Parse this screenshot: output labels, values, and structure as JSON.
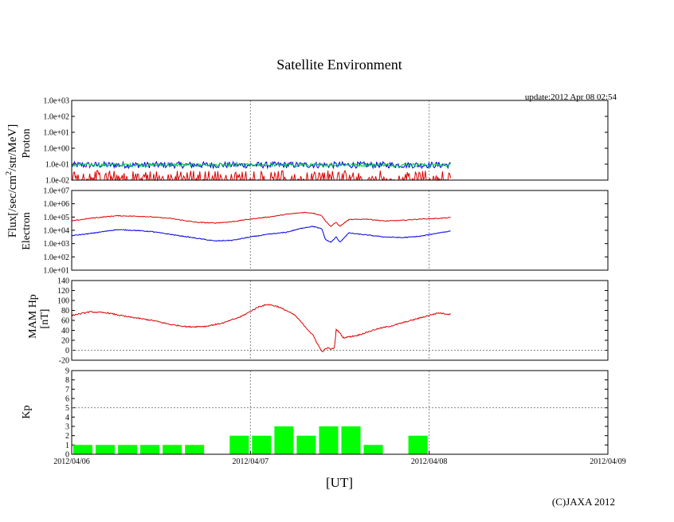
{
  "chart_data": {
    "type": "line",
    "title": "Satellite Environment",
    "update_text": "update:2012 Apr 08 02:54",
    "xlabel": "[UT]",
    "copyright": "(C)JAXA 2012",
    "x_ticks": [
      "2012/04/06",
      "2012/04/07",
      "2012/04/08",
      "2012/04/09"
    ],
    "x_range_days": [
      0,
      3
    ],
    "data_end_day": 2.12,
    "flux_axis_label": "Flux[/sec/cm",
    "flux_axis_sup": "2",
    "flux_axis_rest": "/str/MeV]",
    "panels": {
      "proton": {
        "label": "Proton",
        "scale": "log",
        "ylim": [
          -2,
          3
        ],
        "y_ticks": [
          "1.0e+03",
          "1.0e+02",
          "1.0e+01",
          "1.0e+00",
          "1.0e-01",
          "1.0e-02"
        ],
        "series": [
          {
            "name": "proton-channel-1",
            "color": "#0000dd",
            "log_level_range": [
              -1.25,
              -0.85
            ]
          },
          {
            "name": "proton-channel-2",
            "color": "#00cc44",
            "log_level_range": [
              -1.15,
              -0.95
            ]
          },
          {
            "name": "proton-channel-3",
            "color": "#dd0000",
            "log_level_range": [
              -2.0,
              -1.4
            ]
          }
        ]
      },
      "electron": {
        "label": "Electron",
        "scale": "log",
        "ylim": [
          1,
          7
        ],
        "y_ticks": [
          "1.0e+07",
          "1.0e+06",
          "1.0e+05",
          "1.0e+04",
          "1.0e+03",
          "1.0e+02",
          "1.0e+01"
        ],
        "series": [
          {
            "name": "electron-high",
            "color": "#dd0000",
            "points": [
              [
                0,
                4.7
              ],
              [
                0.1,
                4.9
              ],
              [
                0.25,
                5.1
              ],
              [
                0.4,
                5.05
              ],
              [
                0.55,
                4.9
              ],
              [
                0.7,
                4.6
              ],
              [
                0.8,
                4.55
              ],
              [
                0.9,
                4.65
              ],
              [
                1.0,
                4.85
              ],
              [
                1.1,
                5.0
              ],
              [
                1.2,
                5.2
              ],
              [
                1.3,
                5.35
              ],
              [
                1.35,
                5.3
              ],
              [
                1.4,
                5.1
              ],
              [
                1.42,
                4.7
              ],
              [
                1.45,
                4.3
              ],
              [
                1.48,
                4.6
              ],
              [
                1.5,
                4.3
              ],
              [
                1.55,
                4.8
              ],
              [
                1.65,
                4.85
              ],
              [
                1.75,
                4.7
              ],
              [
                1.85,
                4.75
              ],
              [
                1.95,
                4.85
              ],
              [
                2.05,
                4.9
              ],
              [
                2.12,
                4.95
              ]
            ]
          },
          {
            "name": "electron-low",
            "color": "#0000dd",
            "points": [
              [
                0,
                3.6
              ],
              [
                0.1,
                3.75
              ],
              [
                0.25,
                4.05
              ],
              [
                0.35,
                4.0
              ],
              [
                0.45,
                3.9
              ],
              [
                0.6,
                3.6
              ],
              [
                0.8,
                3.2
              ],
              [
                0.9,
                3.25
              ],
              [
                1.0,
                3.5
              ],
              [
                1.1,
                3.7
              ],
              [
                1.2,
                3.85
              ],
              [
                1.3,
                4.2
              ],
              [
                1.35,
                4.3
              ],
              [
                1.4,
                4.1
              ],
              [
                1.42,
                3.3
              ],
              [
                1.45,
                3.1
              ],
              [
                1.48,
                3.5
              ],
              [
                1.5,
                3.1
              ],
              [
                1.55,
                3.8
              ],
              [
                1.65,
                3.65
              ],
              [
                1.75,
                3.5
              ],
              [
                1.85,
                3.45
              ],
              [
                1.95,
                3.55
              ],
              [
                2.05,
                3.8
              ],
              [
                2.12,
                3.95
              ]
            ]
          }
        ]
      },
      "mam_hp": {
        "label": "MAM Hp",
        "unit": "[nT]",
        "scale": "linear",
        "ylim": [
          -20,
          140
        ],
        "y_ticks": [
          "140",
          "120",
          "100",
          "80",
          "60",
          "40",
          "20",
          "0",
          "-20"
        ],
        "series": [
          {
            "name": "mam-hp",
            "color": "#dd0000",
            "points": [
              [
                0,
                70
              ],
              [
                0.1,
                77
              ],
              [
                0.2,
                75
              ],
              [
                0.3,
                68
              ],
              [
                0.45,
                60
              ],
              [
                0.55,
                52
              ],
              [
                0.65,
                47
              ],
              [
                0.75,
                48
              ],
              [
                0.85,
                55
              ],
              [
                0.95,
                68
              ],
              [
                1.0,
                78
              ],
              [
                1.05,
                88
              ],
              [
                1.1,
                92
              ],
              [
                1.15,
                88
              ],
              [
                1.2,
                80
              ],
              [
                1.25,
                70
              ],
              [
                1.3,
                50
              ],
              [
                1.35,
                30
              ],
              [
                1.38,
                10
              ],
              [
                1.4,
                -3
              ],
              [
                1.43,
                5
              ],
              [
                1.45,
                2
              ],
              [
                1.47,
                5
              ],
              [
                1.48,
                42
              ],
              [
                1.5,
                35
              ],
              [
                1.52,
                25
              ],
              [
                1.6,
                30
              ],
              [
                1.7,
                42
              ],
              [
                1.8,
                50
              ],
              [
                1.9,
                60
              ],
              [
                2.0,
                70
              ],
              [
                2.05,
                75
              ],
              [
                2.12,
                72
              ]
            ]
          }
        ]
      },
      "kp": {
        "label": "Kp",
        "scale": "linear",
        "ylim": [
          0,
          9
        ],
        "y_ticks": [
          "9",
          "8",
          "7",
          "6",
          "5",
          "4",
          "3",
          "2",
          "1",
          "0"
        ],
        "bar_color": "#00ff00",
        "bar_width_hours": 3,
        "bars": [
          {
            "t": 0.0,
            "value": 1
          },
          {
            "t": 0.125,
            "value": 1
          },
          {
            "t": 0.25,
            "value": 1
          },
          {
            "t": 0.375,
            "value": 1
          },
          {
            "t": 0.5,
            "value": 1
          },
          {
            "t": 0.625,
            "value": 1
          },
          {
            "t": 0.875,
            "value": 2
          },
          {
            "t": 1.0,
            "value": 2
          },
          {
            "t": 1.125,
            "value": 3
          },
          {
            "t": 1.25,
            "value": 2
          },
          {
            "t": 1.375,
            "value": 3
          },
          {
            "t": 1.5,
            "value": 3
          },
          {
            "t": 1.625,
            "value": 1
          },
          {
            "t": 1.875,
            "value": 2
          }
        ]
      }
    }
  }
}
